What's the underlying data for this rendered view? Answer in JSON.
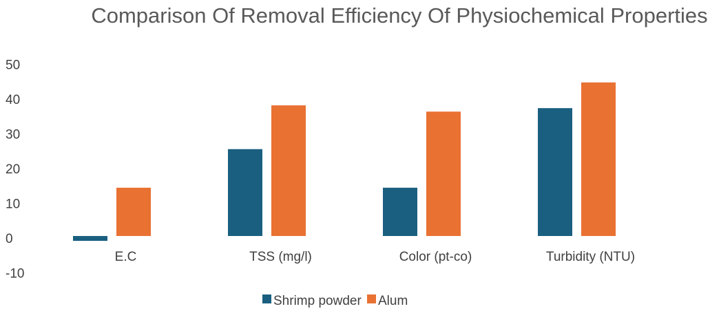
{
  "chart_data": {
    "type": "bar",
    "title": "Comparison Of Removal Efficiency Of Physiochemical Properties",
    "categories": [
      "E.C",
      "TSS (mg/l)",
      "Color (pt-co)",
      "Turbidity (NTU)"
    ],
    "series": [
      {
        "name": "Shrimp powder",
        "color": "#1a5f80",
        "values": [
          -1.4,
          25,
          13.9,
          36.8
        ]
      },
      {
        "name": "Alum",
        "color": "#e97132",
        "values": [
          13.9,
          37.6,
          35.8,
          44.2
        ]
      }
    ],
    "ylim": [
      -10,
      50
    ],
    "yticks": [
      -10,
      0,
      10,
      20,
      30,
      40,
      50
    ],
    "grid": false,
    "legend": "bottom"
  }
}
